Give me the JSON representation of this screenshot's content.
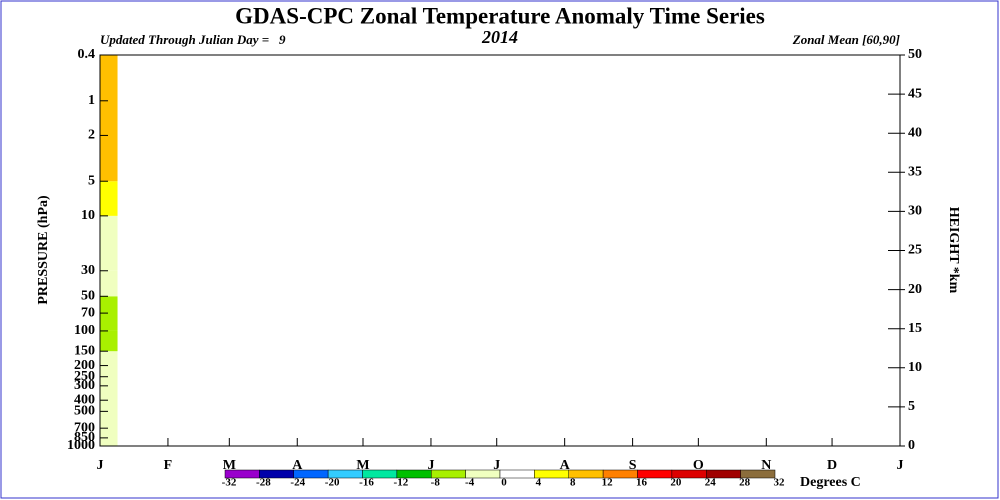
{
  "chart_data": {
    "type": "heatmap",
    "title": "GDAS-CPC Zonal Temperature Anomaly Time Series",
    "subtitle_left": "Updated Through Julian Day =   9",
    "subtitle_center": "2014",
    "subtitle_right": "Zonal Mean [60,90]",
    "y_label": "PRESSURE (hPa)",
    "y2_label": "HEIGHT *km",
    "xlim": [
      1,
      366
    ],
    "xticks": [
      {
        "value": 1,
        "label": "J"
      },
      {
        "value": 32,
        "label": "F"
      },
      {
        "value": 60,
        "label": "M"
      },
      {
        "value": 91,
        "label": "A"
      },
      {
        "value": 121,
        "label": "M"
      },
      {
        "value": 152,
        "label": "J"
      },
      {
        "value": 182,
        "label": "J"
      },
      {
        "value": 213,
        "label": "A"
      },
      {
        "value": 244,
        "label": "S"
      },
      {
        "value": 274,
        "label": "O"
      },
      {
        "value": 305,
        "label": "N"
      },
      {
        "value": 335,
        "label": "D"
      },
      {
        "value": 366,
        "label": "J"
      }
    ],
    "log_y": true,
    "ylim": [
      1000,
      0.4
    ],
    "yticks": [
      0.4,
      1,
      2,
      5,
      10,
      30,
      50,
      70,
      100,
      150,
      200,
      250,
      300,
      400,
      500,
      700,
      850,
      1000
    ],
    "y2lim": [
      0,
      50
    ],
    "y2ticks": [
      0,
      5,
      10,
      15,
      20,
      25,
      30,
      35,
      40,
      45,
      50
    ],
    "day_range": [
      1,
      9
    ],
    "pressure_bins": [
      1000,
      150,
      100,
      50,
      30,
      10,
      5,
      0.4
    ],
    "values": [
      -2,
      -5,
      -7,
      -3,
      -1,
      6,
      9
    ],
    "colorbar_label": "Degrees C",
    "levels": [
      -32,
      -28,
      -24,
      -20,
      -16,
      -12,
      -8,
      -4,
      0,
      4,
      8,
      12,
      16,
      20,
      24,
      28,
      32
    ],
    "colors": [
      "#9900cc",
      "#0000aa",
      "#0066ff",
      "#33ccff",
      "#00e8a0",
      "#00c000",
      "#a8f000",
      "#f0ffc0",
      "#ffffff",
      "#ffff00",
      "#ffc000",
      "#ff8000",
      "#ff0000",
      "#dd0000",
      "#a00000",
      "#8b6d3c"
    ]
  }
}
